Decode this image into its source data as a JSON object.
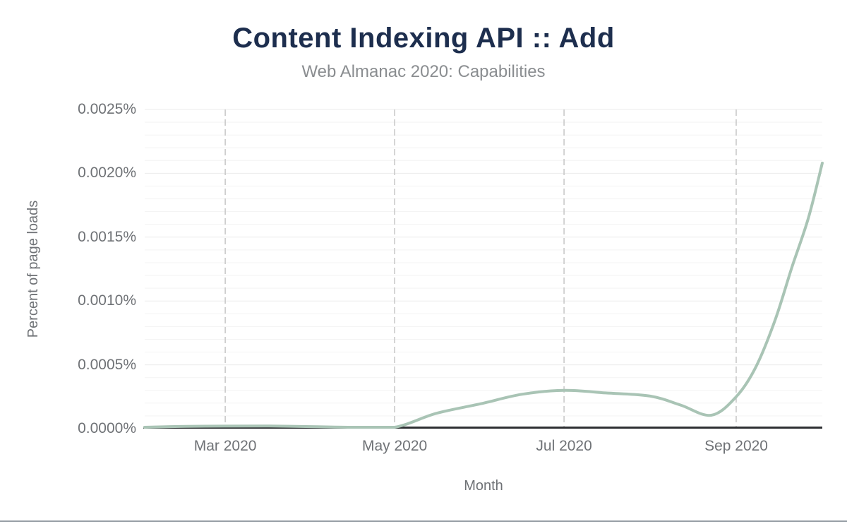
{
  "header": {
    "title": "Content Indexing API :: Add",
    "subtitle": "Web Almanac 2020: Capabilities"
  },
  "colors": {
    "title": "#1d2e4e",
    "subtitle": "#8a8d90",
    "tick_label": "#6f7276",
    "axis_title": "#6f7276",
    "series_line": "#a9c4b5",
    "axis_line": "#2e3033",
    "grid_minor": "#f3f3f3",
    "grid_major": "#ebebeb",
    "grid_vertical_dashed": "#c9c9c9",
    "page_bottom_border": "#98a0a7"
  },
  "chart_data": {
    "type": "line",
    "title": "Content Indexing API :: Add",
    "subtitle": "Web Almanac 2020: Capabilities",
    "xlabel": "Month",
    "ylabel": "Percent of page loads",
    "x_domain": [
      "2020-02-01",
      "2020-10-02"
    ],
    "ylim": [
      0,
      0.0025
    ],
    "y_ticks": [
      {
        "value": 0.0,
        "label": "0.0000%"
      },
      {
        "value": 0.0005,
        "label": "0.0005%"
      },
      {
        "value": 0.001,
        "label": "0.0010%"
      },
      {
        "value": 0.0015,
        "label": "0.0015%"
      },
      {
        "value": 0.002,
        "label": "0.0020%"
      },
      {
        "value": 0.0025,
        "label": "0.0025%"
      }
    ],
    "y_minor_step": 0.0001,
    "x_ticks": [
      {
        "date": "2020-03-01",
        "label": "Mar 2020"
      },
      {
        "date": "2020-05-01",
        "label": "May 2020"
      },
      {
        "date": "2020-07-01",
        "label": "Jul 2020"
      },
      {
        "date": "2020-09-01",
        "label": "Sep 2020"
      }
    ],
    "grid": {
      "horizontal_minor": true,
      "vertical_dashed_at_x_ticks": true
    },
    "legend": "none",
    "series": [
      {
        "name": "Content Indexing API :: Add",
        "unit": "percent of page loads",
        "points": [
          {
            "date": "2020-02-01",
            "value": 5e-06
          },
          {
            "date": "2020-02-16",
            "value": 1.8e-05
          },
          {
            "date": "2020-03-01",
            "value": 2e-05
          },
          {
            "date": "2020-03-16",
            "value": 2.1e-05
          },
          {
            "date": "2020-04-01",
            "value": 1.6e-05
          },
          {
            "date": "2020-04-16",
            "value": 8e-06
          },
          {
            "date": "2020-05-01",
            "value": 2e-06
          },
          {
            "date": "2020-05-16",
            "value": 0.00012
          },
          {
            "date": "2020-06-01",
            "value": 0.000195
          },
          {
            "date": "2020-06-16",
            "value": 0.00027
          },
          {
            "date": "2020-07-01",
            "value": 0.0003
          },
          {
            "date": "2020-07-16",
            "value": 0.00028
          },
          {
            "date": "2020-08-01",
            "value": 0.000255
          },
          {
            "date": "2020-08-12",
            "value": 0.000185
          },
          {
            "date": "2020-08-23",
            "value": 0.000105
          },
          {
            "date": "2020-09-01",
            "value": 0.00025
          },
          {
            "date": "2020-09-08",
            "value": 0.00048
          },
          {
            "date": "2020-09-15",
            "value": 0.00085
          },
          {
            "date": "2020-09-21",
            "value": 0.00126
          },
          {
            "date": "2020-09-27",
            "value": 0.00165
          },
          {
            "date": "2020-10-02",
            "value": 0.00208
          }
        ]
      }
    ]
  }
}
